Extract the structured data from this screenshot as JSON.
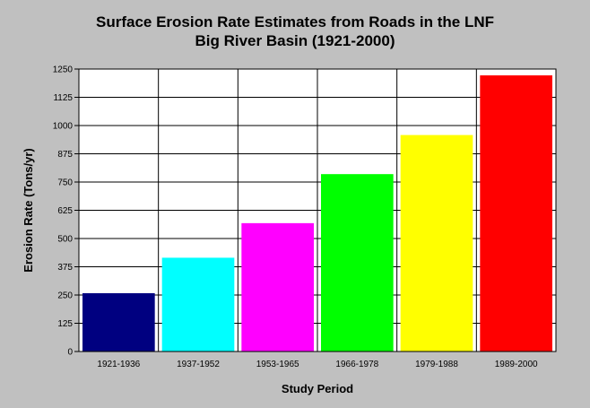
{
  "chart_data": {
    "type": "bar",
    "title": "Surface Erosion Rate Estimates from Roads in the LNF",
    "subtitle": "Big River Basin (1921-2000)",
    "xlabel": "Study Period",
    "ylabel": "Erosion Rate (Tons/yr)",
    "categories": [
      "1921-1936",
      "1937-1952",
      "1953-1965",
      "1966-1978",
      "1979-1988",
      "1989-2000"
    ],
    "values": [
      258,
      415,
      568,
      785,
      958,
      1222
    ],
    "colors": [
      "#000080",
      "#00ffff",
      "#ff00ff",
      "#00ff00",
      "#ffff00",
      "#ff0000"
    ],
    "ylim": [
      0,
      1250
    ],
    "yticks": [
      0,
      125,
      250,
      375,
      500,
      625,
      750,
      875,
      1000,
      1125,
      1250
    ],
    "grid": true,
    "legend": "none",
    "background": "#c0c0c0",
    "plot_background": "#ffffff"
  }
}
